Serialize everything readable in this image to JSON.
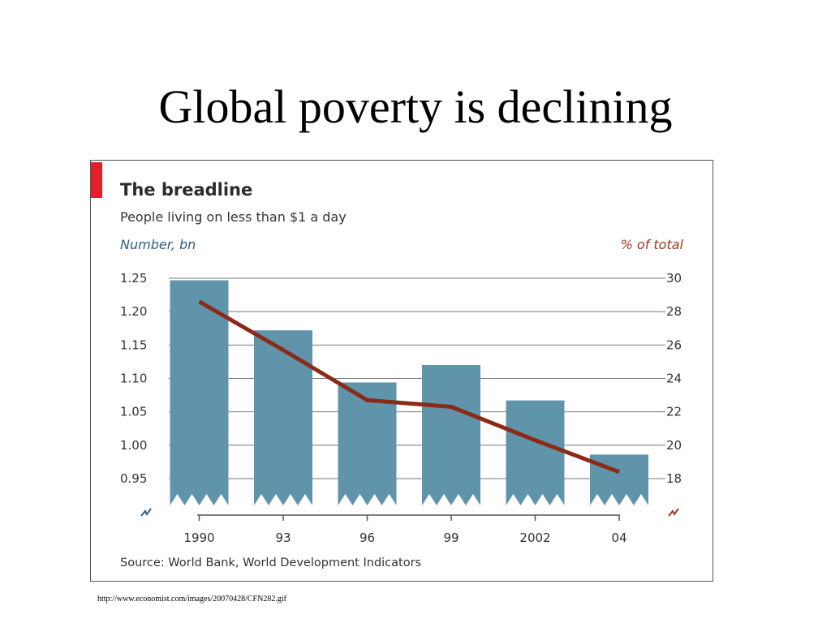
{
  "slide": {
    "title": "Global poverty is declining",
    "source_url": "http://www.economist.com/images/20070428/CFN282.gif"
  },
  "colors": {
    "accent": "#e3202a",
    "bar": "#6094ab",
    "line": "#8b2a16",
    "left_axis_text": "#2f5e82",
    "right_axis_text": "#9c3a22",
    "grid": "#777777"
  },
  "chart_data": {
    "type": "bar",
    "title": "The breadline",
    "subtitle": "People living on less than $1 a day",
    "source": "Source: World Bank, World Development Indicators",
    "categories": [
      "1990",
      "93",
      "96",
      "99",
      "2002",
      "04"
    ],
    "ylabel": "Number, bn",
    "ylabel_right": "% of total",
    "ylim": [
      0.95,
      1.25
    ],
    "y2lim": [
      18,
      30
    ],
    "yticks": [
      "1.25",
      "1.20",
      "1.15",
      "1.10",
      "1.05",
      "1.00",
      "0.95"
    ],
    "y2ticks": [
      "30",
      "28",
      "26",
      "24",
      "22",
      "20",
      "18"
    ],
    "axis_break": true,
    "grid": true,
    "series": [
      {
        "name": "Number, bn",
        "kind": "bar",
        "axis": "left",
        "values": [
          1.247,
          1.172,
          1.094,
          1.12,
          1.067,
          0.986
        ]
      },
      {
        "name": "% of total",
        "kind": "line",
        "axis": "right",
        "values": [
          28.6,
          25.7,
          22.7,
          22.3,
          20.3,
          18.4
        ]
      }
    ]
  }
}
